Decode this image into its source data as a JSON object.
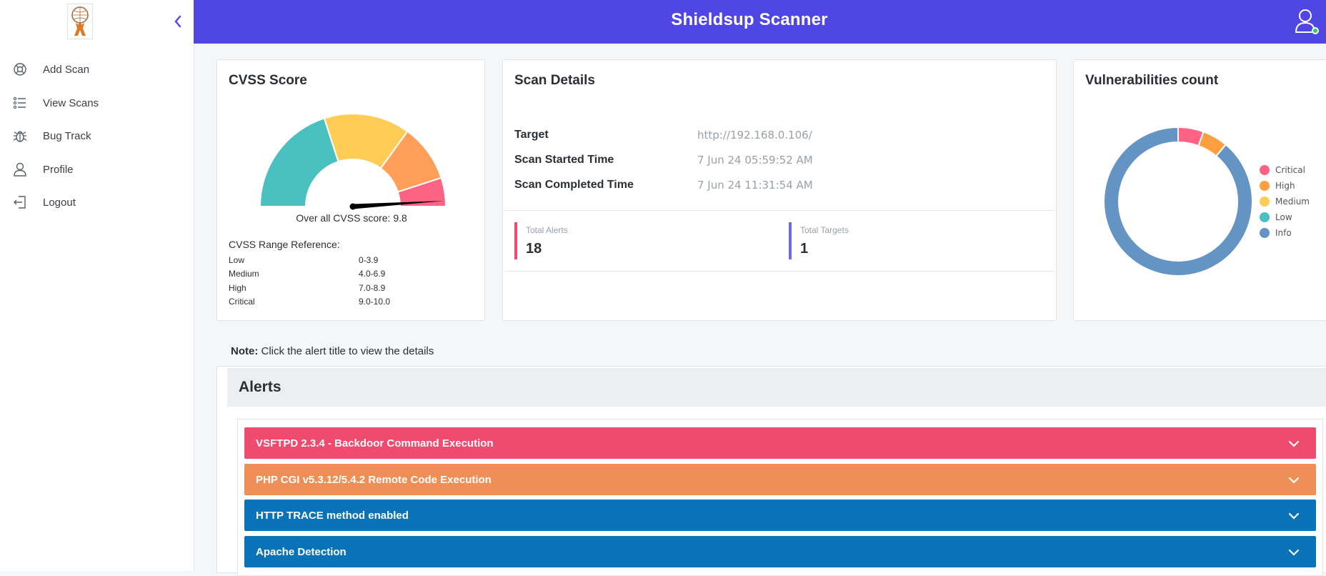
{
  "app": {
    "title": "Shieldsup Scanner"
  },
  "sidebar": {
    "items": [
      {
        "label": "Add Scan",
        "icon": "lifebuoy-icon"
      },
      {
        "label": "View Scans",
        "icon": "list-icon"
      },
      {
        "label": "Bug Track",
        "icon": "bug-icon"
      },
      {
        "label": "Profile",
        "icon": "user-icon"
      },
      {
        "label": "Logout",
        "icon": "logout-icon"
      }
    ]
  },
  "cvss": {
    "title": "CVSS Score",
    "overall_text": "Over all CVSS score: 9.8",
    "score": 9.8,
    "range_title": "CVSS Range Reference:",
    "ranges": [
      {
        "label": "Low",
        "range": "0-3.9"
      },
      {
        "label": "Medium",
        "range": "4.0-6.9"
      },
      {
        "label": "High",
        "range": "7.0-8.9"
      },
      {
        "label": "Critical",
        "range": "9.0-10.0"
      }
    ],
    "gauge_colors": {
      "low": "#4bc0c0",
      "medium": "#ffcd56",
      "high": "#ff9f5a",
      "critical": "#ff6384"
    }
  },
  "details": {
    "title": "Scan Details",
    "target_label": "Target",
    "target_value": "http://192.168.0.106/",
    "started_label": "Scan Started Time",
    "started_value": "7 Jun 24 05:59:52 AM",
    "completed_label": "Scan Completed Time",
    "completed_value": "7 Jun 24 11:31:54 AM",
    "total_alerts_label": "Total Alerts",
    "total_alerts_value": "18",
    "total_targets_label": "Total Targets",
    "total_targets_value": "1"
  },
  "vulnerabilities": {
    "title": "Vulnerabilities count",
    "legend": [
      {
        "label": "Critical",
        "color": "#ff6384"
      },
      {
        "label": "High",
        "color": "#ff9f40"
      },
      {
        "label": "Medium",
        "color": "#ffcd56"
      },
      {
        "label": "Low",
        "color": "#4bc0c0"
      },
      {
        "label": "Info",
        "color": "#6394c4"
      }
    ],
    "counts": [
      1,
      1,
      0,
      0,
      16
    ]
  },
  "note": {
    "bold": "Note:",
    "text": " Click the alert title to view the details"
  },
  "alerts": {
    "title": "Alerts",
    "items": [
      {
        "title": "VSFTPD 2.3.4 - Backdoor Command Execution",
        "color": "#ef4b6e"
      },
      {
        "title": "PHP CGI v5.3.12/5.4.2 Remote Code Execution",
        "color": "#ee8f58"
      },
      {
        "title": "HTTP TRACE method enabled",
        "color": "#0a73b7"
      },
      {
        "title": "Apache Detection",
        "color": "#0a73b7"
      }
    ]
  }
}
